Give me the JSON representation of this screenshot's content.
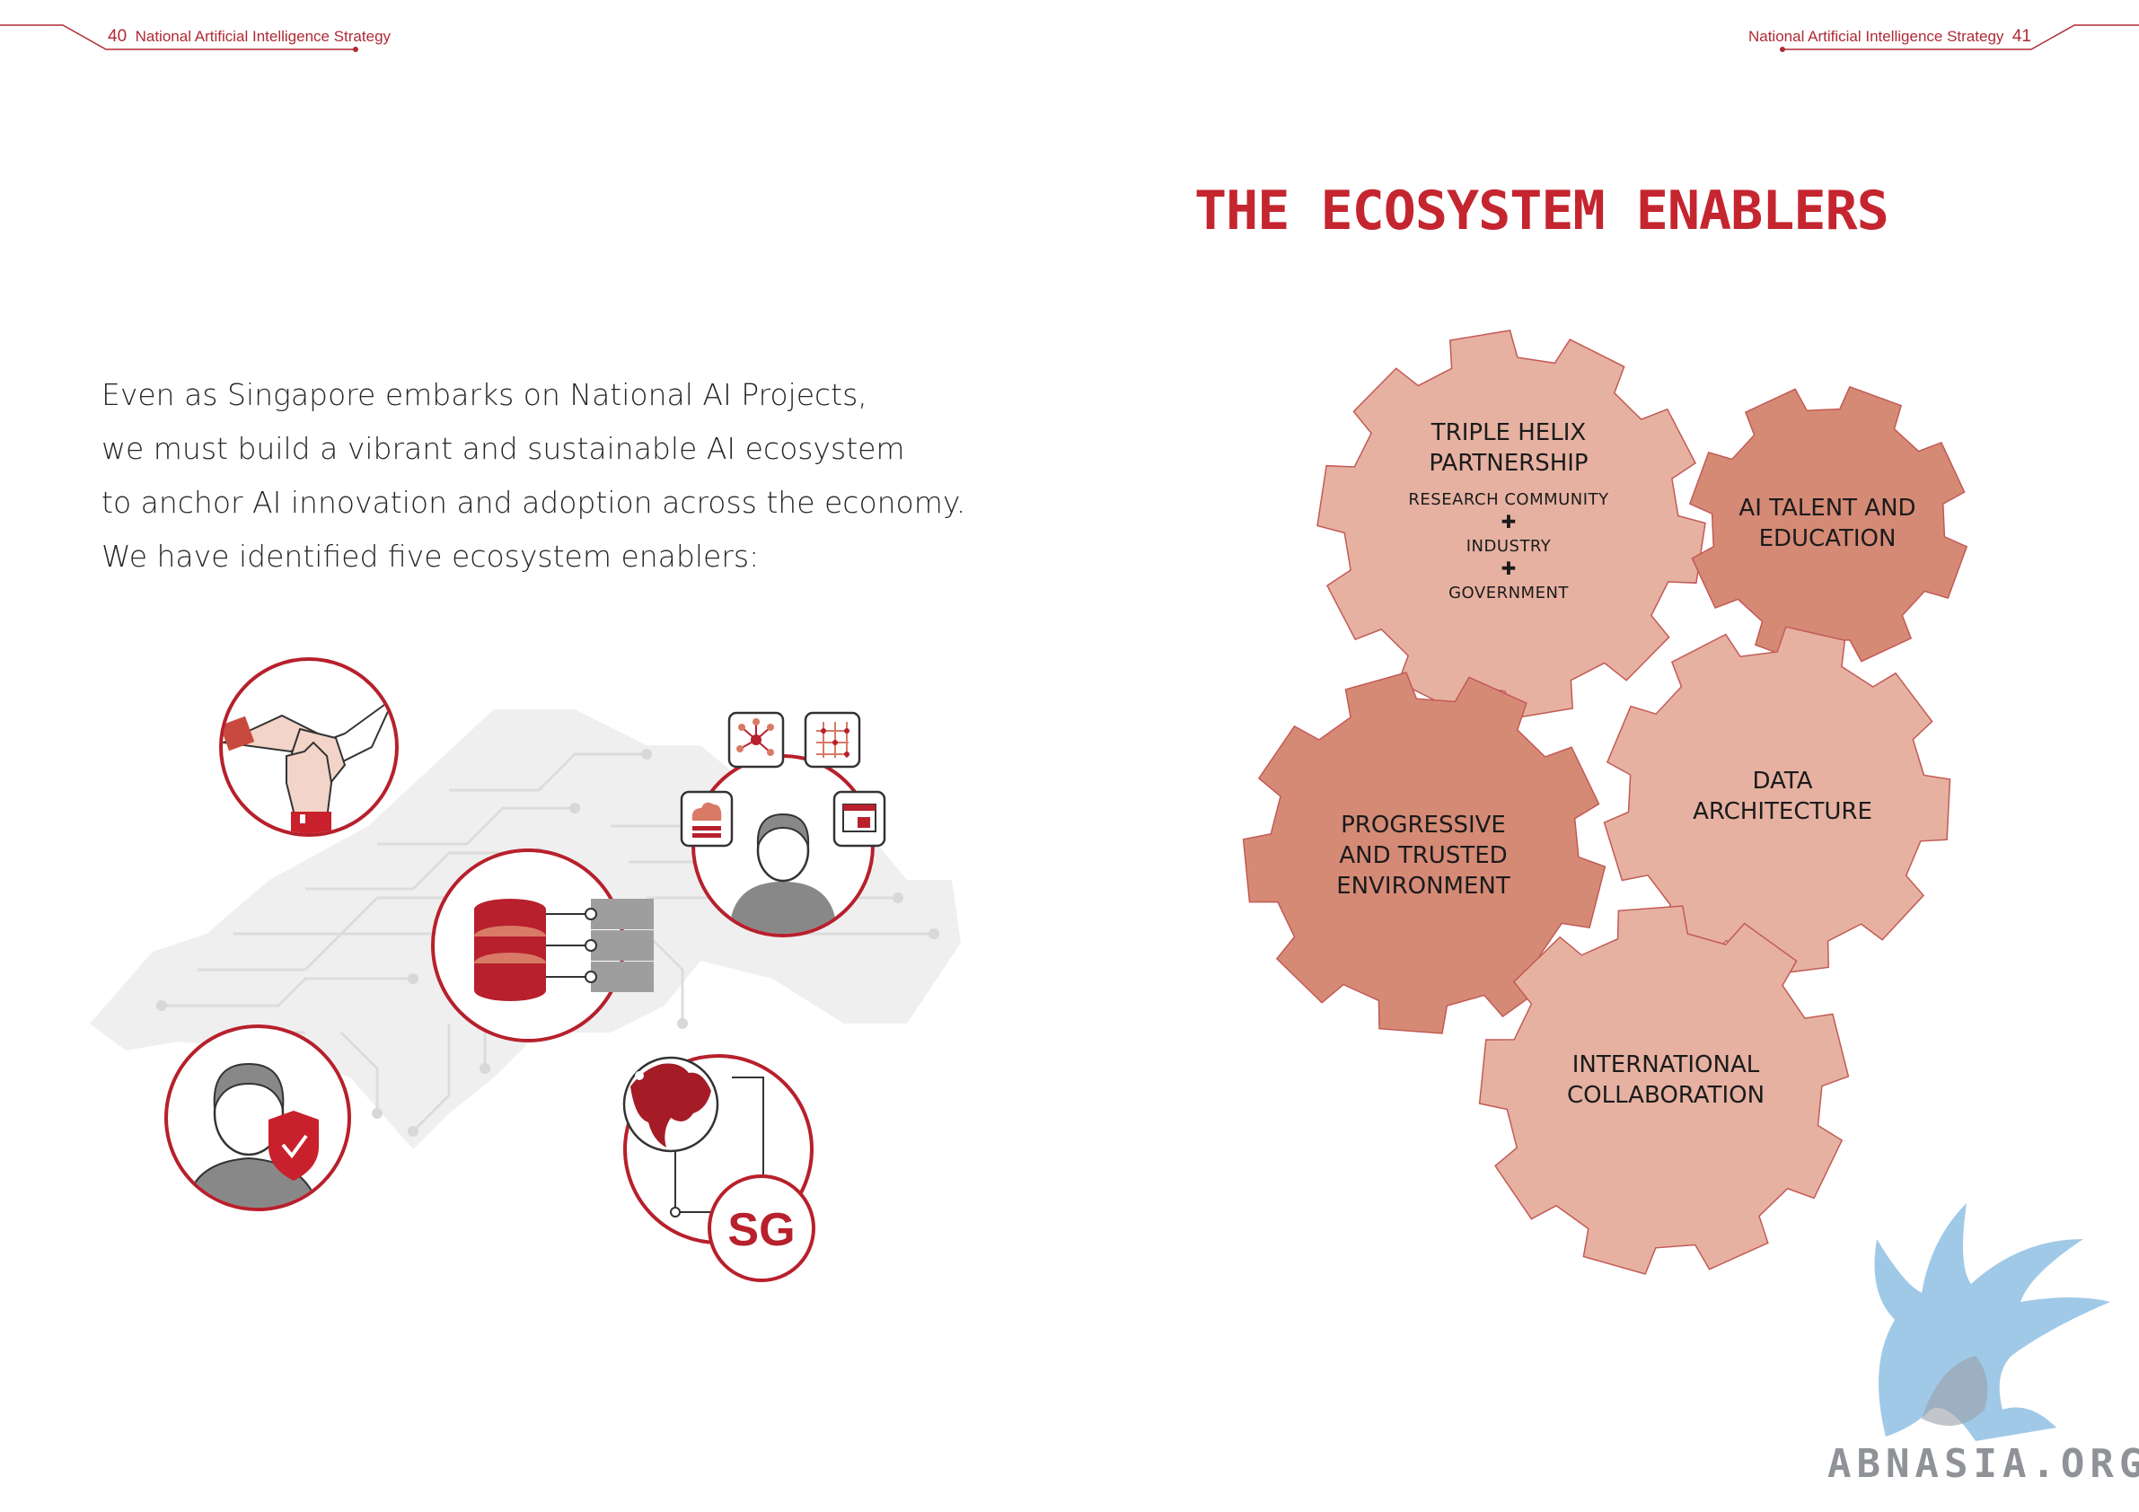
{
  "header": {
    "left_page_number": "40",
    "left_running_title": "National Artificial Intelligence Strategy",
    "right_running_title": "National Artificial Intelligence Strategy",
    "right_page_number": "41"
  },
  "intro": {
    "lines": [
      "Even as Singapore embarks on National AI Projects,",
      "we must build a vibrant and sustainable AI ecosystem",
      "to anchor AI innovation and adoption across the economy.",
      "We have identified five ecosystem enablers:"
    ]
  },
  "title": "THE ECOSYSTEM ENABLERS",
  "gears": {
    "triple_helix": {
      "title_line1": "TRIPLE HELIX",
      "title_line2": "PARTNERSHIP",
      "item1": "RESEARCH COMMUNITY",
      "plus1": "✚",
      "item2": "INDUSTRY",
      "plus2": "✚",
      "item3": "GOVERNMENT"
    },
    "ai_talent": {
      "line1": "AI TALENT AND",
      "line2": "EDUCATION"
    },
    "progressive": {
      "line1": "PROGRESSIVE",
      "line2": "AND TRUSTED",
      "line3": "ENVIRONMENT"
    },
    "data_architecture": {
      "line1": "DATA",
      "line2": "ARCHITECTURE"
    },
    "international": {
      "line1": "INTERNATIONAL",
      "line2": "COLLABORATION"
    }
  },
  "illustration": {
    "sg_badge": "SG"
  },
  "colors": {
    "brand_red": "#c4252f",
    "gear_light": "#e6b1a1",
    "gear_dark": "#d58a76",
    "gear_stroke": "#c35a55"
  },
  "watermark": {
    "text": "ABNASIA.ORG"
  }
}
